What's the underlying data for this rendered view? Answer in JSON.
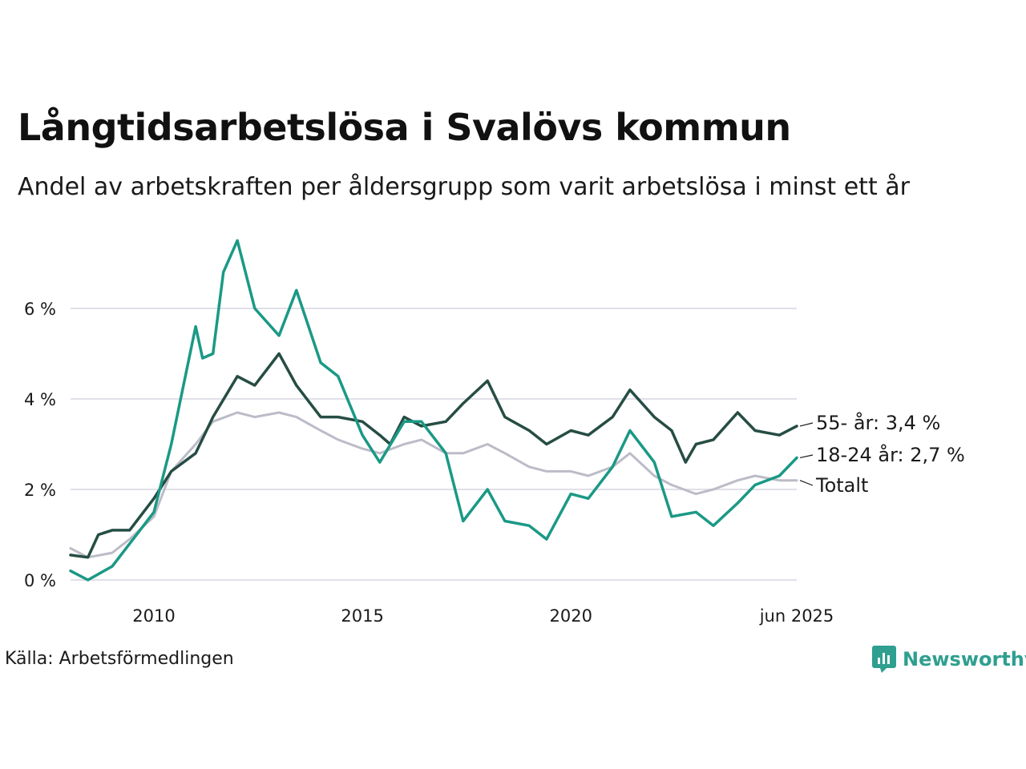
{
  "title": "Långtidsarbetslösa i Svalövs kommun",
  "subtitle": "Andel av arbetskraften per åldersgrupp som varit arbetslösa i minst ett år",
  "source": "Källa: Arbetsförmedlingen",
  "logo": "Newsworthy",
  "colors": {
    "young": "#1a9985",
    "old": "#264d44",
    "total": "#bcbcc8",
    "grid": "#e0e0e8",
    "logo": "#2f9f8f"
  },
  "chart_data": {
    "type": "line",
    "title": "Långtidsarbetslösa i Svalövs kommun",
    "subtitle": "Andel av arbetskraften per åldersgrupp som varit arbetslösa i minst ett år",
    "xlabel": "",
    "ylabel": "",
    "x_ticks": [
      "2010",
      "2015",
      "2020",
      "jun 2025"
    ],
    "y_ticks": [
      "0 %",
      "2 %",
      "4 %",
      "6 %"
    ],
    "ylim": [
      0,
      7.6
    ],
    "xlim": [
      "2008-01",
      "2025-06"
    ],
    "grid": true,
    "legend": "end-labels",
    "end_labels": {
      "old": "55- år: 3,4 %",
      "young": "18-24 år: 2,7 %",
      "total": "Totalt"
    },
    "series": [
      {
        "key": "total",
        "name": "Totalt",
        "points": [
          [
            "2008-01",
            0.7
          ],
          [
            "2008-06",
            0.5
          ],
          [
            "2009-01",
            0.6
          ],
          [
            "2009-06",
            0.9
          ],
          [
            "2010-01",
            1.4
          ],
          [
            "2010-06",
            2.4
          ],
          [
            "2011-01",
            3.0
          ],
          [
            "2011-06",
            3.5
          ],
          [
            "2012-01",
            3.7
          ],
          [
            "2012-06",
            3.6
          ],
          [
            "2013-01",
            3.7
          ],
          [
            "2013-06",
            3.6
          ],
          [
            "2014-01",
            3.3
          ],
          [
            "2014-06",
            3.1
          ],
          [
            "2015-01",
            2.9
          ],
          [
            "2015-06",
            2.8
          ],
          [
            "2016-01",
            3.0
          ],
          [
            "2016-06",
            3.1
          ],
          [
            "2017-01",
            2.8
          ],
          [
            "2017-06",
            2.8
          ],
          [
            "2018-01",
            3.0
          ],
          [
            "2018-06",
            2.8
          ],
          [
            "2019-01",
            2.5
          ],
          [
            "2019-06",
            2.4
          ],
          [
            "2020-01",
            2.4
          ],
          [
            "2020-06",
            2.3
          ],
          [
            "2021-01",
            2.5
          ],
          [
            "2021-06",
            2.8
          ],
          [
            "2022-01",
            2.3
          ],
          [
            "2022-06",
            2.1
          ],
          [
            "2023-01",
            1.9
          ],
          [
            "2023-06",
            2.0
          ],
          [
            "2024-01",
            2.2
          ],
          [
            "2024-06",
            2.3
          ],
          [
            "2025-01",
            2.2
          ],
          [
            "2025-06",
            2.2
          ]
        ]
      },
      {
        "key": "old",
        "name": "55- år",
        "points": [
          [
            "2008-01",
            0.55
          ],
          [
            "2008-06",
            0.5
          ],
          [
            "2008-09",
            1.0
          ],
          [
            "2009-01",
            1.1
          ],
          [
            "2009-06",
            1.1
          ],
          [
            "2010-01",
            1.8
          ],
          [
            "2010-06",
            2.4
          ],
          [
            "2011-01",
            2.8
          ],
          [
            "2011-06",
            3.6
          ],
          [
            "2012-01",
            4.5
          ],
          [
            "2012-06",
            4.3
          ],
          [
            "2013-01",
            5.0
          ],
          [
            "2013-06",
            4.3
          ],
          [
            "2014-01",
            3.6
          ],
          [
            "2014-06",
            3.6
          ],
          [
            "2015-01",
            3.5
          ],
          [
            "2015-06",
            3.2
          ],
          [
            "2015-09",
            3.0
          ],
          [
            "2016-01",
            3.6
          ],
          [
            "2016-06",
            3.4
          ],
          [
            "2017-01",
            3.5
          ],
          [
            "2017-06",
            3.9
          ],
          [
            "2018-01",
            4.4
          ],
          [
            "2018-06",
            3.6
          ],
          [
            "2019-01",
            3.3
          ],
          [
            "2019-06",
            3.0
          ],
          [
            "2020-01",
            3.3
          ],
          [
            "2020-06",
            3.2
          ],
          [
            "2021-01",
            3.6
          ],
          [
            "2021-06",
            4.2
          ],
          [
            "2022-01",
            3.6
          ],
          [
            "2022-06",
            3.3
          ],
          [
            "2022-10",
            2.6
          ],
          [
            "2023-01",
            3.0
          ],
          [
            "2023-06",
            3.1
          ],
          [
            "2024-01",
            3.7
          ],
          [
            "2024-06",
            3.3
          ],
          [
            "2025-01",
            3.2
          ],
          [
            "2025-06",
            3.4
          ]
        ]
      },
      {
        "key": "young",
        "name": "18-24 år",
        "points": [
          [
            "2008-01",
            0.2
          ],
          [
            "2008-06",
            0.0
          ],
          [
            "2009-01",
            0.3
          ],
          [
            "2009-06",
            0.8
          ],
          [
            "2010-01",
            1.5
          ],
          [
            "2010-06",
            3.0
          ],
          [
            "2011-01",
            5.6
          ],
          [
            "2011-03",
            4.9
          ],
          [
            "2011-06",
            5.0
          ],
          [
            "2011-09",
            6.8
          ],
          [
            "2012-01",
            7.5
          ],
          [
            "2012-06",
            6.0
          ],
          [
            "2013-01",
            5.4
          ],
          [
            "2013-06",
            6.4
          ],
          [
            "2014-01",
            4.8
          ],
          [
            "2014-06",
            4.5
          ],
          [
            "2015-01",
            3.2
          ],
          [
            "2015-06",
            2.6
          ],
          [
            "2016-01",
            3.5
          ],
          [
            "2016-06",
            3.5
          ],
          [
            "2017-01",
            2.8
          ],
          [
            "2017-06",
            1.3
          ],
          [
            "2018-01",
            2.0
          ],
          [
            "2018-06",
            1.3
          ],
          [
            "2019-01",
            1.2
          ],
          [
            "2019-06",
            0.9
          ],
          [
            "2020-01",
            1.9
          ],
          [
            "2020-06",
            1.8
          ],
          [
            "2021-01",
            2.5
          ],
          [
            "2021-06",
            3.3
          ],
          [
            "2022-01",
            2.6
          ],
          [
            "2022-06",
            1.4
          ],
          [
            "2023-01",
            1.5
          ],
          [
            "2023-06",
            1.2
          ],
          [
            "2024-01",
            1.7
          ],
          [
            "2024-06",
            2.1
          ],
          [
            "2025-01",
            2.3
          ],
          [
            "2025-06",
            2.7
          ]
        ]
      }
    ]
  }
}
